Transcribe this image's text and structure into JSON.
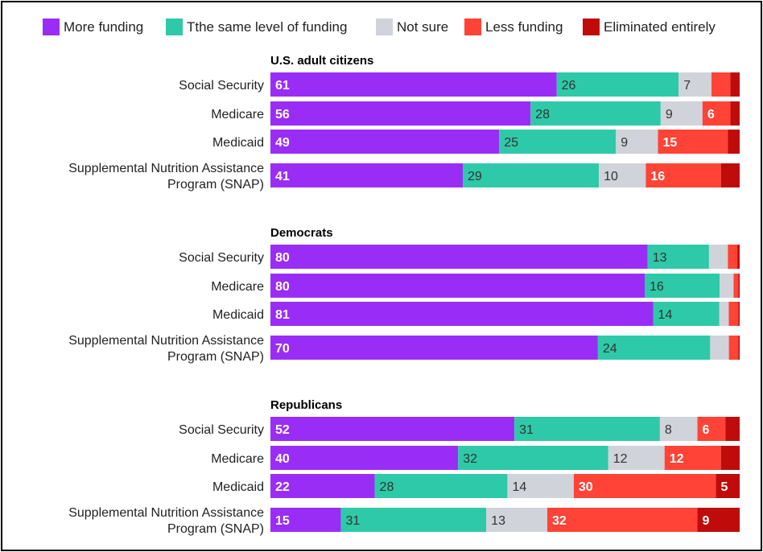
{
  "chart_data": {
    "type": "bar",
    "orientation": "horizontal",
    "stacked": true,
    "legend": {
      "position": "top",
      "entries": [
        {
          "key": "more",
          "label": "More funding",
          "color": "#9a2df5"
        },
        {
          "key": "same",
          "label": "Tthe same level of funding",
          "color": "#2ec9a8"
        },
        {
          "key": "notsure",
          "label": "Not sure",
          "color": "#d0d3da"
        },
        {
          "key": "less",
          "label": "Less funding",
          "color": "#ff4336"
        },
        {
          "key": "elim",
          "label": "Eliminated entirely",
          "color": "#c00b0b"
        }
      ]
    },
    "groups": [
      {
        "title": "U.S. adult citizens",
        "rows": [
          {
            "label": [
              "Social Security"
            ],
            "values": [
              61,
              26,
              7,
              4,
              2
            ],
            "labels": [
              "61",
              "26",
              "7",
              "",
              ""
            ]
          },
          {
            "label": [
              "Medicare"
            ],
            "values": [
              56,
              28,
              9,
              6,
              2
            ],
            "labels": [
              "56",
              "28",
              "9",
              "6",
              ""
            ]
          },
          {
            "label": [
              "Medicaid"
            ],
            "values": [
              49,
              25,
              9,
              15,
              2.5
            ],
            "labels": [
              "49",
              "25",
              "9",
              "15",
              ""
            ]
          },
          {
            "label": [
              "Supplemental Nutrition Assistance",
              "Program (SNAP)"
            ],
            "values": [
              41,
              29,
              10,
              16,
              4
            ],
            "labels": [
              "41",
              "29",
              "10",
              "16",
              ""
            ]
          }
        ]
      },
      {
        "title": "Democrats",
        "rows": [
          {
            "label": [
              "Social Security"
            ],
            "values": [
              80,
              13,
              4,
              2,
              0.5
            ],
            "labels": [
              "80",
              "13",
              "",
              "",
              ""
            ]
          },
          {
            "label": [
              "Medicare"
            ],
            "values": [
              80,
              16,
              3,
              1,
              0.3
            ],
            "labels": [
              "80",
              "16",
              "",
              "",
              ""
            ]
          },
          {
            "label": [
              "Medicaid"
            ],
            "values": [
              81,
              14,
              2,
              2,
              0.3
            ],
            "labels": [
              "81",
              "14",
              "",
              "",
              ""
            ]
          },
          {
            "label": [
              "Supplemental Nutrition Assistance",
              "Program (SNAP)"
            ],
            "values": [
              70,
              24,
              4,
              2,
              0.3
            ],
            "labels": [
              "70",
              "24",
              "",
              "",
              ""
            ]
          }
        ]
      },
      {
        "title": "Republicans",
        "rows": [
          {
            "label": [
              "Social Security"
            ],
            "values": [
              52,
              31,
              8,
              6,
              3
            ],
            "labels": [
              "52",
              "31",
              "8",
              "6",
              ""
            ]
          },
          {
            "label": [
              "Medicare"
            ],
            "values": [
              40,
              32,
              12,
              12,
              4
            ],
            "labels": [
              "40",
              "32",
              "12",
              "12",
              ""
            ]
          },
          {
            "label": [
              "Medicaid"
            ],
            "values": [
              22,
              28,
              14,
              30,
              5
            ],
            "labels": [
              "22",
              "28",
              "14",
              "30",
              "5"
            ]
          },
          {
            "label": [
              "Supplemental Nutrition Assistance",
              "Program (SNAP)"
            ],
            "values": [
              15,
              31,
              13,
              32,
              9
            ],
            "labels": [
              "15",
              "31",
              "13",
              "32",
              "9"
            ]
          }
        ]
      }
    ],
    "xlim": [
      0,
      100
    ],
    "unit": "percent"
  }
}
